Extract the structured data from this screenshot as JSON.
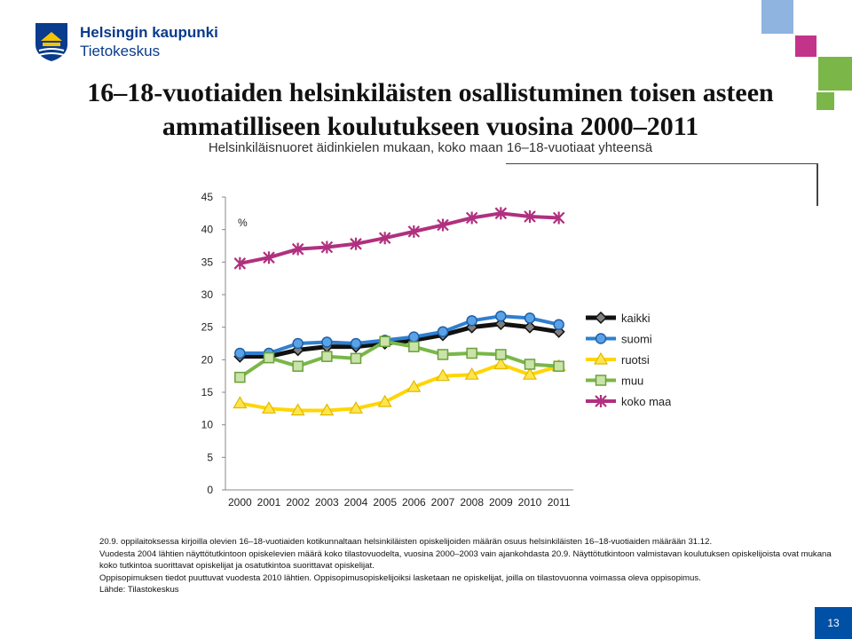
{
  "header": {
    "org_name": "Helsingin kaupunki",
    "org_unit": "Tietokeskus"
  },
  "title": "16–18-vuotiaiden helsinkiläisten osallistuminen toisen asteen ammatilliseen koulutukseen vuosina 2000–2011",
  "subtitle": "Helsinkiläisnuoret äidinkielen mukaan, koko maan 16–18-vuotiaat yhteensä",
  "colors": {
    "brand_blue": "#0050a5",
    "deco_light_blue": "#8fb4e0",
    "deco_magenta": "#c2338a",
    "deco_green": "#7ab648"
  },
  "chart_data": {
    "type": "line",
    "ylabel": "%",
    "ylim": [
      0,
      45
    ],
    "yticks": [
      0,
      5,
      10,
      15,
      20,
      25,
      30,
      35,
      40,
      45
    ],
    "grid": false,
    "legend_position": "right",
    "categories": [
      "2000",
      "2001",
      "2002",
      "2003",
      "2004",
      "2005",
      "2006",
      "2007",
      "2008",
      "2009",
      "2010",
      "2011"
    ],
    "series": [
      {
        "name": "kaikki",
        "color": "#111111",
        "marker": "diamond",
        "marker_fill": "#7f7f7f",
        "values": [
          20.5,
          20.5,
          21.5,
          22.0,
          22.0,
          22.5,
          23.0,
          23.8,
          25.0,
          25.5,
          25.0,
          24.3
        ]
      },
      {
        "name": "suomi",
        "color": "#2f7fd0",
        "marker": "circle",
        "marker_fill": "#5aa2e6",
        "values": [
          21.0,
          21.0,
          22.5,
          22.7,
          22.5,
          23.0,
          23.5,
          24.3,
          26.0,
          26.7,
          26.4,
          25.4
        ]
      },
      {
        "name": "ruotsi",
        "color": "#ffd500",
        "marker": "triangle",
        "marker_fill": "#ffe54d",
        "values": [
          13.3,
          12.5,
          12.2,
          12.2,
          12.5,
          13.5,
          15.8,
          17.5,
          17.7,
          19.3,
          17.7,
          19.0
        ]
      },
      {
        "name": "muu",
        "color": "#7ab648",
        "marker": "square",
        "marker_fill": "#c9e3a8",
        "values": [
          17.3,
          20.3,
          19.0,
          20.5,
          20.2,
          22.8,
          22.0,
          20.8,
          21.0,
          20.8,
          19.3,
          19.0
        ]
      },
      {
        "name": "koko maa",
        "color": "#b0307f",
        "marker": "star",
        "marker_fill": "#b0307f",
        "values": [
          34.8,
          35.7,
          37.0,
          37.3,
          37.8,
          38.7,
          39.7,
          40.7,
          41.8,
          42.5,
          42.0,
          41.8
        ]
      }
    ]
  },
  "notes": [
    "20.9. oppilaitoksessa kirjoilla olevien 16–18-vuotiaiden kotikunnaltaan helsinkiläisten opiskelijoiden määrän osuus helsinkiläisten 16–18-vuotiaiden määrään 31.12.",
    "Vuodesta 2004 lähtien näyttötutkintoon opiskelevien määrä koko tilastovuodelta, vuosina 2000–2003 vain ajankohdasta 20.9. Näyttötutkintoon valmistavan koulutuksen opiskelijoista ovat mukana koko tutkintoa suorittavat opiskelijat ja osatutkintoa suorittavat opiskelijat.",
    "Oppisopimuksen tiedot puuttuvat vuodesta 2010 lähtien. Oppisopimusopiskelijoiksi lasketaan ne opiskelijat, joilla on tilastovuonna voimassa oleva oppisopimus.",
    "Lähde: Tilastokeskus"
  ],
  "page_number": "13"
}
